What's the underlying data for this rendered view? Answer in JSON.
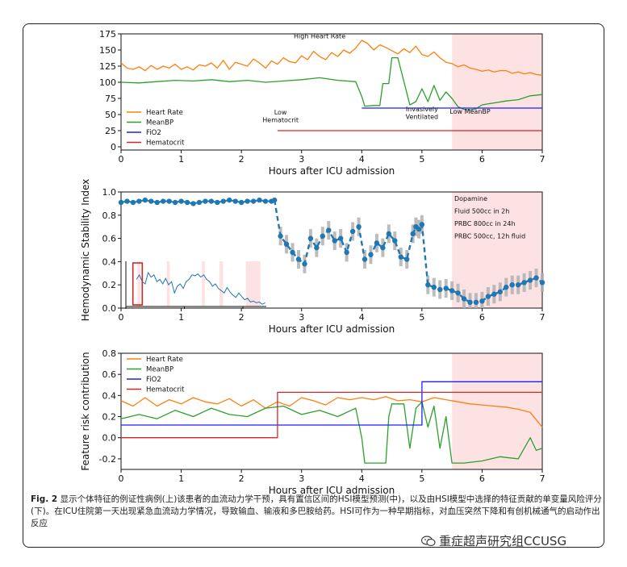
{
  "caption": {
    "label": "Fig. 2",
    "text": "显示个体特征的例证性病例(上)该患者的血流动力学干预，具有置信区间的HSI模型预测(中)，以及由HSI模型中选择的特征贡献的单变量风险评分(下)。在ICU住院第一天出现紧急血流动力学情况，导致输血、输液和多巴胺给药。HSI可作为一种早期指标，对血压突然下降和有创机械通气的启动作出反应"
  },
  "watermark": {
    "text": "重症超声研究组CCUSG",
    "icon": "wechat-logo-icon"
  },
  "colors": {
    "heart_rate": "#ff7f0e",
    "mean_bp": "#2ca02c",
    "fio2": "#1f1fff",
    "hematocrit": "#d62728",
    "hsi": "#1f77b4",
    "ci": "#b0b0b0",
    "shade": "#fde2e4"
  },
  "chart_data": [
    {
      "type": "line",
      "id": "vitals",
      "xlabel": "Hours after ICU admission",
      "ylabel": "",
      "xlim": [
        0,
        7
      ],
      "ylim": [
        -5,
        175
      ],
      "xticks": [
        0,
        1,
        2,
        3,
        4,
        5,
        6,
        7
      ],
      "yticks": [
        0,
        25,
        50,
        75,
        100,
        125,
        150,
        175
      ],
      "shaded_region": [
        5.5,
        7
      ],
      "legend": {
        "placement": "middle-left",
        "entries": [
          "Heart Rate",
          "MeanBP",
          "FiO2",
          "Hematocrit"
        ]
      },
      "annotations": [
        {
          "text": "High Heart Rate",
          "x": 3.3,
          "y": 168
        },
        {
          "text": "Low",
          "x": 2.65,
          "y": 50
        },
        {
          "text": "Hematocrit",
          "x": 2.65,
          "y": 38
        },
        {
          "text": "Invasively",
          "x": 5.0,
          "y": 55
        },
        {
          "text": "Ventilated",
          "x": 5.0,
          "y": 43
        },
        {
          "text": "Low MeanBP",
          "x": 5.8,
          "y": 51
        }
      ],
      "series": [
        {
          "name": "Heart Rate",
          "x": [
            0,
            0.1,
            0.2,
            0.3,
            0.4,
            0.5,
            0.6,
            0.7,
            0.8,
            0.9,
            1.0,
            1.1,
            1.2,
            1.3,
            1.4,
            1.5,
            1.6,
            1.7,
            1.8,
            1.9,
            2.0,
            2.1,
            2.2,
            2.3,
            2.4,
            2.5,
            2.6,
            2.7,
            2.8,
            2.9,
            3.0,
            3.1,
            3.2,
            3.3,
            3.4,
            3.5,
            3.6,
            3.7,
            3.8,
            3.9,
            4.0,
            4.1,
            4.2,
            4.3,
            4.4,
            4.5,
            4.6,
            4.7,
            4.8,
            4.9,
            5.0,
            5.1,
            5.2,
            5.3,
            5.4,
            5.5,
            5.6,
            5.7,
            5.8,
            5.9,
            6.0,
            6.1,
            6.2,
            6.3,
            6.4,
            6.5,
            6.6,
            6.7,
            6.8,
            6.9,
            7.0
          ],
          "y": [
            130,
            122,
            120,
            124,
            118,
            126,
            120,
            125,
            122,
            128,
            120,
            124,
            119,
            127,
            125,
            130,
            122,
            134,
            120,
            131,
            128,
            125,
            136,
            130,
            122,
            133,
            128,
            138,
            132,
            130,
            141,
            135,
            148,
            140,
            135,
            146,
            140,
            150,
            145,
            153,
            165,
            160,
            150,
            158,
            154,
            149,
            144,
            152,
            146,
            156,
            143,
            140,
            147,
            138,
            131,
            129,
            124,
            127,
            122,
            120,
            117,
            119,
            116,
            118,
            118,
            114,
            116,
            113,
            115,
            112,
            111
          ]
        },
        {
          "name": "MeanBP",
          "x": [
            0,
            0.3,
            0.6,
            0.9,
            1.2,
            1.5,
            1.8,
            2.1,
            2.4,
            2.7,
            3.0,
            3.3,
            3.6,
            3.9,
            4.0,
            4.05,
            4.2,
            4.3,
            4.35,
            4.45,
            4.5,
            4.6,
            4.8,
            4.9,
            5.0,
            5.1,
            5.2,
            5.3,
            5.4,
            5.5,
            5.6,
            5.7,
            5.8,
            5.9,
            6.0,
            6.2,
            6.4,
            6.6,
            6.8,
            7.0
          ],
          "y": [
            100,
            99,
            101,
            103,
            102,
            104,
            101,
            103,
            100,
            102,
            104,
            107,
            103,
            101,
            78,
            63,
            64,
            64,
            98,
            98,
            138,
            138,
            65,
            70,
            90,
            70,
            95,
            72,
            85,
            75,
            62,
            58,
            57,
            59,
            65,
            68,
            71,
            73,
            79,
            81
          ]
        },
        {
          "name": "FiO2",
          "x": [
            4.0,
            7.0
          ],
          "y": [
            60,
            60
          ]
        },
        {
          "name": "Hematocrit",
          "x": [
            2.6,
            7.0
          ],
          "y": [
            25,
            25
          ]
        }
      ]
    },
    {
      "type": "line",
      "id": "hsi",
      "xlabel": "Hours after ICU admission",
      "ylabel": "Hemodynamic Stability Index",
      "xlim": [
        0,
        7
      ],
      "ylim": [
        0,
        1.0
      ],
      "xticks": [
        0,
        1,
        2,
        3,
        4,
        5,
        6,
        7
      ],
      "yticks": [
        0.0,
        0.2,
        0.4,
        0.6,
        0.8,
        1.0
      ],
      "shaded_region": [
        5.5,
        7
      ],
      "annotations": [
        "Dopamine",
        "Fluid 500cc in 2h",
        "PRBC 800cc in 24h",
        "PRBC 500cc, 12h fluid"
      ],
      "series": [
        {
          "name": "",
          "x": [
            0,
            0.1,
            0.2,
            0.3,
            0.4,
            0.5,
            0.6,
            0.7,
            0.8,
            0.9,
            1.0,
            1.1,
            1.2,
            1.3,
            1.4,
            1.5,
            1.6,
            1.7,
            1.8,
            1.9,
            2.0,
            2.1,
            2.2,
            2.3,
            2.4,
            2.5,
            2.55,
            2.65,
            2.75,
            2.85,
            2.95,
            3.05,
            3.15,
            3.25,
            3.35,
            3.45,
            3.55,
            3.65,
            3.75,
            3.85,
            3.95,
            4.05,
            4.15,
            4.25,
            4.35,
            4.45,
            4.55,
            4.65,
            4.75,
            4.85,
            4.9,
            4.95,
            5.0,
            5.1,
            5.2,
            5.3,
            5.4,
            5.5,
            5.6,
            5.7,
            5.8,
            5.9,
            6.0,
            6.1,
            6.2,
            6.3,
            6.4,
            6.5,
            6.6,
            6.7,
            6.8,
            6.9,
            7.0
          ],
          "y": [
            0.91,
            0.92,
            0.91,
            0.92,
            0.93,
            0.92,
            0.91,
            0.92,
            0.92,
            0.91,
            0.92,
            0.91,
            0.9,
            0.91,
            0.92,
            0.92,
            0.91,
            0.92,
            0.93,
            0.92,
            0.91,
            0.92,
            0.92,
            0.93,
            0.92,
            0.92,
            0.93,
            0.62,
            0.55,
            0.48,
            0.42,
            0.38,
            0.6,
            0.52,
            0.62,
            0.67,
            0.58,
            0.6,
            0.48,
            0.66,
            0.7,
            0.42,
            0.46,
            0.56,
            0.52,
            0.64,
            0.58,
            0.44,
            0.42,
            0.64,
            0.7,
            0.68,
            0.72,
            0.2,
            0.18,
            0.16,
            0.17,
            0.15,
            0.13,
            0.08,
            0.05,
            0.05,
            0.06,
            0.1,
            0.12,
            0.14,
            0.18,
            0.2,
            0.2,
            0.22,
            0.24,
            0.26,
            0.22
          ]
        }
      ]
    },
    {
      "type": "line",
      "id": "contribution",
      "xlabel": "Hours after ICU admission",
      "ylabel": "Feature risk contribution",
      "xlim": [
        0,
        7
      ],
      "ylim": [
        -0.3,
        0.8
      ],
      "xticks": [
        0,
        1,
        2,
        3,
        4,
        5,
        6,
        7
      ],
      "yticks": [
        -0.2,
        0.0,
        0.2,
        0.4,
        0.6,
        0.8
      ],
      "shaded_region": [
        5.5,
        7
      ],
      "legend": {
        "placement": "top-left",
        "entries": [
          "Heart Rate",
          "MeanBP",
          "FiO2",
          "Hematocrit"
        ]
      },
      "series": [
        {
          "name": "Heart Rate",
          "x": [
            0,
            0.2,
            0.4,
            0.6,
            0.8,
            1.0,
            1.2,
            1.4,
            1.6,
            1.8,
            2.0,
            2.2,
            2.4,
            2.6,
            2.8,
            3.0,
            3.2,
            3.4,
            3.6,
            3.8,
            4.0,
            4.2,
            4.4,
            4.6,
            4.8,
            5.0,
            5.2,
            5.4,
            5.6,
            5.8,
            6.0,
            6.2,
            6.4,
            6.6,
            6.8,
            7.0
          ],
          "y": [
            0.35,
            0.3,
            0.38,
            0.3,
            0.36,
            0.32,
            0.38,
            0.34,
            0.32,
            0.37,
            0.3,
            0.36,
            0.28,
            0.34,
            0.3,
            0.38,
            0.35,
            0.31,
            0.38,
            0.36,
            0.38,
            0.36,
            0.39,
            0.35,
            0.36,
            0.34,
            0.38,
            0.36,
            0.34,
            0.32,
            0.31,
            0.3,
            0.29,
            0.27,
            0.24,
            0.1
          ]
        },
        {
          "name": "MeanBP",
          "x": [
            0,
            0.3,
            0.6,
            0.9,
            1.2,
            1.5,
            1.8,
            2.1,
            2.4,
            2.7,
            3.0,
            3.3,
            3.6,
            3.9,
            4.0,
            4.05,
            4.4,
            4.45,
            4.5,
            4.7,
            4.8,
            4.9,
            5.0,
            5.1,
            5.2,
            5.3,
            5.4,
            5.5,
            5.7,
            6.0,
            6.3,
            6.6,
            6.8,
            6.9,
            7.0
          ],
          "y": [
            0.18,
            0.22,
            0.18,
            0.26,
            0.2,
            0.28,
            0.22,
            0.2,
            0.28,
            0.3,
            0.22,
            0.26,
            0.2,
            0.28,
            0.0,
            -0.24,
            -0.24,
            0.2,
            0.32,
            0.32,
            -0.1,
            0.28,
            0.34,
            0.1,
            0.3,
            -0.1,
            0.2,
            -0.24,
            -0.24,
            -0.22,
            -0.18,
            -0.2,
            0.0,
            -0.12,
            -0.1
          ]
        },
        {
          "name": "FiO2",
          "x": [
            0,
            5.0,
            5.0,
            7.0
          ],
          "y": [
            0.12,
            0.12,
            0.53,
            0.53
          ]
        },
        {
          "name": "Hematocrit",
          "x": [
            0,
            2.6,
            2.6,
            7.0
          ],
          "y": [
            0.0,
            0.0,
            0.43,
            0.43
          ]
        }
      ]
    }
  ],
  "inset_chart": {
    "type": "line",
    "xlim": [
      0,
      2.4
    ],
    "ylim": [
      0,
      1
    ],
    "xticks": [
      0,
      1,
      2
    ],
    "note": "inset with red box around early window"
  }
}
